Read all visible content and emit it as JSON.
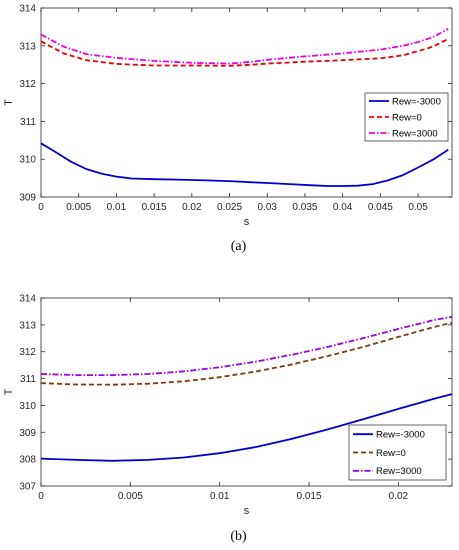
{
  "chart_data": [
    {
      "type": "line",
      "caption": "(a)",
      "xlabel": "s",
      "ylabel": "T",
      "xlim": [
        0,
        0.0545
      ],
      "ylim": [
        309,
        314
      ],
      "xticks": [
        0,
        0.005,
        0.01,
        0.015,
        0.02,
        0.025,
        0.03,
        0.035,
        0.04,
        0.045,
        0.05
      ],
      "xtick_labels": [
        "0",
        "0.005",
        "0.01",
        "0.015",
        "0.02",
        "0.025",
        "0.03",
        "0.035",
        "0.04",
        "0.045",
        "0.05"
      ],
      "yticks": [
        309,
        310,
        311,
        312,
        313,
        314
      ],
      "ytick_labels": [
        "309",
        "310",
        "311",
        "312",
        "313",
        "314"
      ],
      "grid": false,
      "legend_position": "right",
      "series": [
        {
          "name": "Rew=-3000",
          "color": "#0000cc",
          "dash": "solid",
          "x": [
            0,
            0.002,
            0.004,
            0.006,
            0.008,
            0.01,
            0.012,
            0.015,
            0.018,
            0.02,
            0.022,
            0.025,
            0.028,
            0.03,
            0.033,
            0.036,
            0.038,
            0.04,
            0.042,
            0.044,
            0.046,
            0.048,
            0.05,
            0.052,
            0.054
          ],
          "y": [
            310.42,
            310.18,
            309.93,
            309.74,
            309.62,
            309.54,
            309.49,
            309.47,
            309.46,
            309.45,
            309.44,
            309.42,
            309.39,
            309.37,
            309.34,
            309.31,
            309.29,
            309.29,
            309.3,
            309.34,
            309.44,
            309.58,
            309.78,
            309.99,
            310.25
          ]
        },
        {
          "name": "Rew=0",
          "color": "#e60000",
          "dash": "dashed",
          "x": [
            0,
            0.003,
            0.006,
            0.01,
            0.015,
            0.02,
            0.025,
            0.028,
            0.03,
            0.035,
            0.04,
            0.045,
            0.048,
            0.05,
            0.052,
            0.054
          ],
          "y": [
            313.12,
            312.8,
            312.62,
            312.52,
            312.48,
            312.48,
            312.47,
            312.5,
            312.53,
            312.58,
            312.62,
            312.67,
            312.75,
            312.86,
            312.98,
            313.18
          ]
        },
        {
          "name": "Rew=3000",
          "color": "#e600e6",
          "dash": "dashdot",
          "x": [
            0,
            0.003,
            0.006,
            0.01,
            0.015,
            0.02,
            0.025,
            0.028,
            0.03,
            0.035,
            0.04,
            0.045,
            0.048,
            0.05,
            0.052,
            0.054
          ],
          "y": [
            313.3,
            312.98,
            312.78,
            312.68,
            312.6,
            312.55,
            312.53,
            312.58,
            312.63,
            312.72,
            312.8,
            312.9,
            313.0,
            313.1,
            313.23,
            313.45
          ]
        }
      ]
    },
    {
      "type": "line",
      "caption": "(b)",
      "xlabel": "s",
      "ylabel": "T",
      "xlim": [
        0,
        0.023
      ],
      "ylim": [
        307,
        314
      ],
      "xticks": [
        0,
        0.005,
        0.01,
        0.015,
        0.02
      ],
      "xtick_labels": [
        "0",
        "0.005",
        "0.01",
        "0.015",
        "0.02"
      ],
      "yticks": [
        307,
        308,
        309,
        310,
        311,
        312,
        313,
        314
      ],
      "ytick_labels": [
        "307",
        "308",
        "309",
        "310",
        "311",
        "312",
        "313",
        "314"
      ],
      "grid": false,
      "legend_position": "bottom-right",
      "series": [
        {
          "name": "Rew=-3000",
          "color": "#0000cc",
          "dash": "solid",
          "x": [
            0,
            0.002,
            0.004,
            0.006,
            0.008,
            0.01,
            0.012,
            0.014,
            0.016,
            0.018,
            0.02,
            0.022,
            0.023
          ],
          "y": [
            308.02,
            307.97,
            307.94,
            307.97,
            308.06,
            308.22,
            308.45,
            308.75,
            309.1,
            309.48,
            309.87,
            310.25,
            310.42
          ]
        },
        {
          "name": "Rew=0",
          "color": "#7a3b10",
          "dash": "dashed",
          "x": [
            0,
            0.002,
            0.004,
            0.006,
            0.008,
            0.01,
            0.012,
            0.014,
            0.016,
            0.018,
            0.02,
            0.022,
            0.023
          ],
          "y": [
            310.83,
            310.78,
            310.77,
            310.81,
            310.9,
            311.05,
            311.26,
            311.52,
            311.83,
            312.17,
            312.55,
            312.92,
            313.08
          ]
        },
        {
          "name": "Rew=3000",
          "color": "#9a00e6",
          "dash": "dashdot",
          "x": [
            0,
            0.002,
            0.004,
            0.006,
            0.008,
            0.01,
            0.012,
            0.014,
            0.016,
            0.018,
            0.02,
            0.022,
            0.023
          ],
          "y": [
            311.17,
            311.13,
            311.13,
            311.17,
            311.27,
            311.42,
            311.63,
            311.88,
            312.17,
            312.5,
            312.85,
            313.18,
            313.3
          ]
        }
      ]
    }
  ]
}
